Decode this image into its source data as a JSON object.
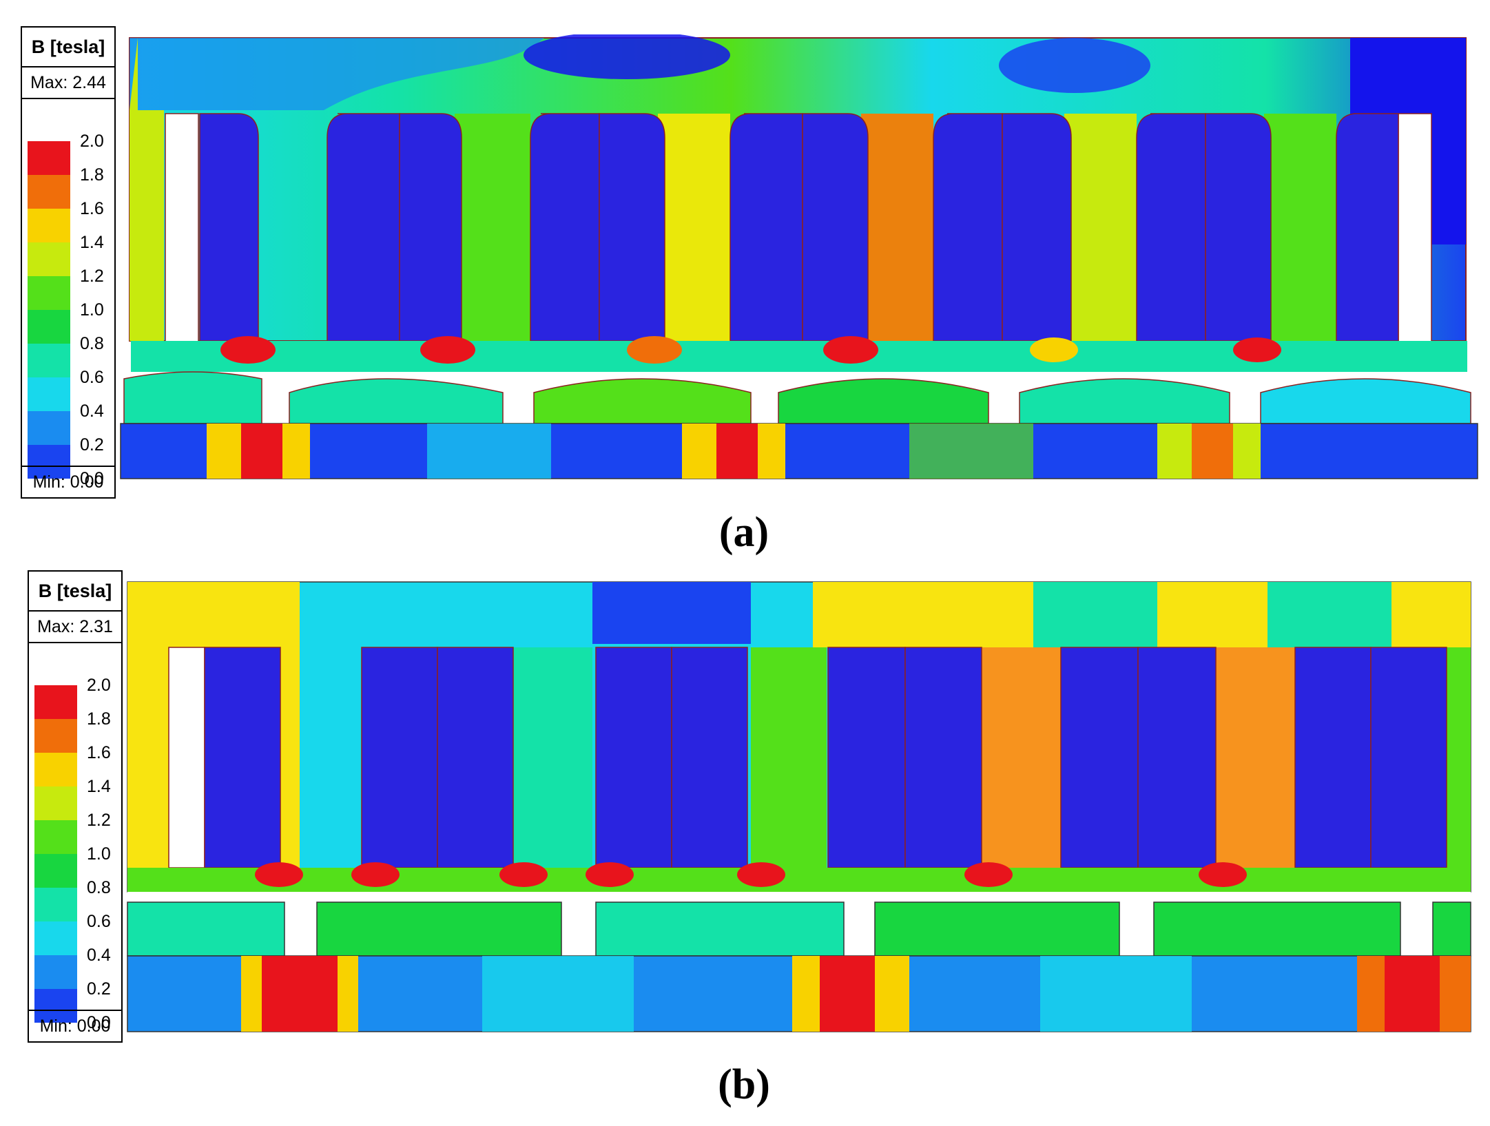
{
  "panels": [
    {
      "id": "a",
      "caption": "(a)",
      "legend": {
        "title": "B [tesla]",
        "max_label": "Max: 2.44",
        "min_label": "Min: 0.00",
        "ticks": [
          "2.0",
          "1.8",
          "1.6",
          "1.4",
          "1.2",
          "1.0",
          "0.8",
          "0.6",
          "0.4",
          "0.2",
          "0.0"
        ]
      }
    },
    {
      "id": "b",
      "caption": "(b)",
      "legend": {
        "title": "B [tesla]",
        "max_label": "Max: 2.31",
        "min_label": "Min: 0.00",
        "ticks": [
          "2.0",
          "1.8",
          "1.6",
          "1.4",
          "1.2",
          "1.0",
          "0.8",
          "0.6",
          "0.4",
          "0.2",
          "0.0"
        ]
      }
    }
  ],
  "colormap": [
    "#e8141c",
    "#f06e0a",
    "#f8d200",
    "#c7ea0e",
    "#54e01a",
    "#18d640",
    "#14e2a8",
    "#18d8ec",
    "#1a8cf0",
    "#1a44f0",
    "#1414ec"
  ]
}
